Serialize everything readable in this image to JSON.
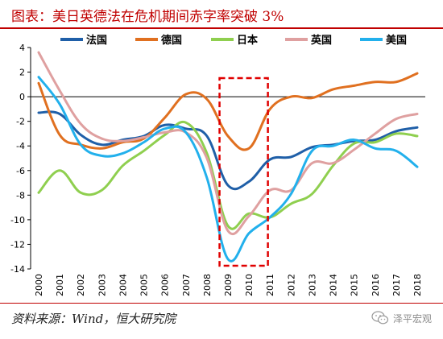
{
  "header": {
    "title": "图表：美日英德法在危机期间赤字率突破 3%"
  },
  "source": {
    "text": "资料来源：Wind，恒大研究院"
  },
  "watermark": {
    "text": "泽平宏观",
    "icon": "wechat-bubble-icon"
  },
  "chart_data": {
    "type": "line",
    "title": "",
    "xlabel": "",
    "ylabel": "",
    "x": [
      2000,
      2001,
      2002,
      2003,
      2004,
      2005,
      2006,
      2007,
      2008,
      2009,
      2010,
      2011,
      2012,
      2013,
      2014,
      2015,
      2016,
      2017,
      2018
    ],
    "x_tick_labels": [
      "2000",
      "2001",
      "2002",
      "2003",
      "2004",
      "2005",
      "2006",
      "2007",
      "2008",
      "2009",
      "2010",
      "2011",
      "2012",
      "2013",
      "2014",
      "2015",
      "2016",
      "2017",
      "2018"
    ],
    "ylim": [
      -14,
      4
    ],
    "y_ticks": [
      4,
      2,
      0,
      -2,
      -4,
      -6,
      -8,
      -10,
      -12,
      -14
    ],
    "y_tick_labels": [
      "4",
      "2",
      "0",
      "-2",
      "-4",
      "-6",
      "-8",
      "-10",
      "-12",
      "-14"
    ],
    "legend_position": "top",
    "highlight": {
      "x_range": [
        2008.6,
        2010.9
      ],
      "style": "red-dashed-box"
    },
    "series": [
      {
        "name": "法国",
        "color": "#1f5fa8",
        "values": [
          -1.3,
          -1.4,
          -3.1,
          -3.9,
          -3.5,
          -3.2,
          -2.3,
          -2.6,
          -3.2,
          -7.2,
          -6.9,
          -5.1,
          -4.9,
          -4.1,
          -3.9,
          -3.6,
          -3.5,
          -2.8,
          -2.5
        ]
      },
      {
        "name": "德国",
        "color": "#e07020",
        "values": [
          1.1,
          -3.1,
          -3.9,
          -4.2,
          -3.7,
          -3.4,
          -1.7,
          0.2,
          -0.2,
          -3.2,
          -4.2,
          -1.0,
          0.0,
          -0.1,
          0.6,
          0.9,
          1.2,
          1.2,
          1.9
        ]
      },
      {
        "name": "日本",
        "color": "#8fcf4f",
        "values": [
          -7.8,
          -6.0,
          -7.8,
          -7.6,
          -5.6,
          -4.4,
          -3.1,
          -2.1,
          -4.6,
          -10.5,
          -9.5,
          -9.8,
          -8.7,
          -7.9,
          -5.6,
          -3.8,
          -3.7,
          -3.0,
          -3.2
        ]
      },
      {
        "name": "英国",
        "color": "#dfa0a0",
        "values": [
          3.6,
          0.5,
          -2.2,
          -3.4,
          -3.6,
          -3.3,
          -2.9,
          -2.9,
          -5.0,
          -10.9,
          -9.7,
          -7.6,
          -7.6,
          -5.4,
          -5.4,
          -4.3,
          -3.0,
          -1.8,
          -1.4
        ]
      },
      {
        "name": "美国",
        "color": "#22b0ec",
        "values": [
          1.6,
          -0.6,
          -3.9,
          -4.8,
          -4.6,
          -3.7,
          -2.6,
          -2.9,
          -6.6,
          -13.2,
          -11.1,
          -9.8,
          -7.9,
          -4.4,
          -4.0,
          -3.5,
          -4.2,
          -4.4,
          -5.7
        ]
      }
    ]
  }
}
